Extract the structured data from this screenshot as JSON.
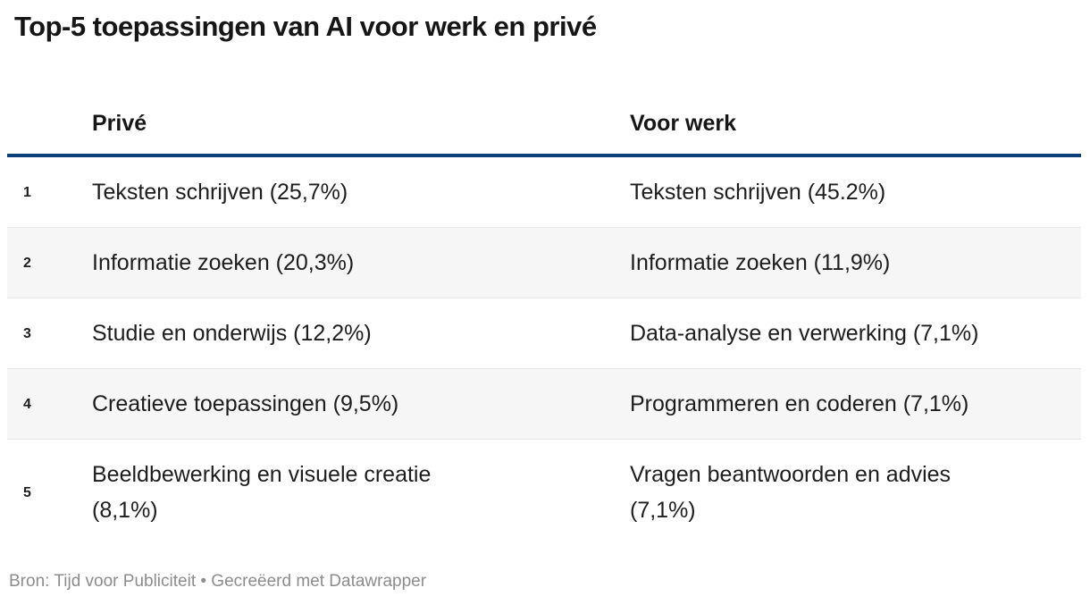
{
  "title": "Top-5 toepassingen van AI voor werk en privé",
  "chart_data": {
    "type": "table",
    "title": "Top-5 toepassingen van AI voor werk en privé",
    "columns": {
      "rank": "",
      "prive": "Privé",
      "werk": "Voor werk"
    },
    "rows": [
      {
        "rank": "1",
        "prive": "Teksten schrijven (25,7%)",
        "werk": "Teksten schrijven (45.2%)"
      },
      {
        "rank": "2",
        "prive": "Informatie zoeken (20,3%)",
        "werk": "Informatie zoeken (11,9%)"
      },
      {
        "rank": "3",
        "prive": "Studie en onderwijs (12,2%)",
        "werk": "Data-analyse en verwerking (7,1%)"
      },
      {
        "rank": "4",
        "prive": "Creatieve toepassingen (9,5%)",
        "werk": "Programmeren en coderen (7,1%)"
      },
      {
        "rank": "5",
        "prive": "Beeldbewerking en visuele creatie (8,1%)",
        "werk": "Vragen beantwoorden en advies (7,1%)"
      }
    ],
    "series": [
      {
        "name": "Privé",
        "labels": [
          "Teksten schrijven",
          "Informatie zoeken",
          "Studie en onderwijs",
          "Creatieve toepassingen",
          "Beeldbewerking en visuele creatie"
        ],
        "values": [
          25.7,
          20.3,
          12.2,
          9.5,
          8.1
        ]
      },
      {
        "name": "Voor werk",
        "labels": [
          "Teksten schrijven",
          "Informatie zoeken",
          "Data-analyse en verwerking",
          "Programmeren en coderen",
          "Vragen beantwoorden en advies"
        ],
        "values": [
          45.2,
          11.9,
          7.1,
          7.1,
          7.1
        ]
      }
    ],
    "layout": {
      "striped_rows": true,
      "header_rule_color": "#0d4078",
      "stripe_color": "#f6f6f6"
    }
  },
  "footer": {
    "text": "Bron: Tijd voor Publiciteit • Gecreëerd met Datawrapper"
  },
  "colors": {
    "header_border": "#0d4078",
    "stripe": "#f6f6f6",
    "row_border": "#e8e8e8",
    "text": "#1d1d1d",
    "footer_text": "#8c8c8c"
  }
}
